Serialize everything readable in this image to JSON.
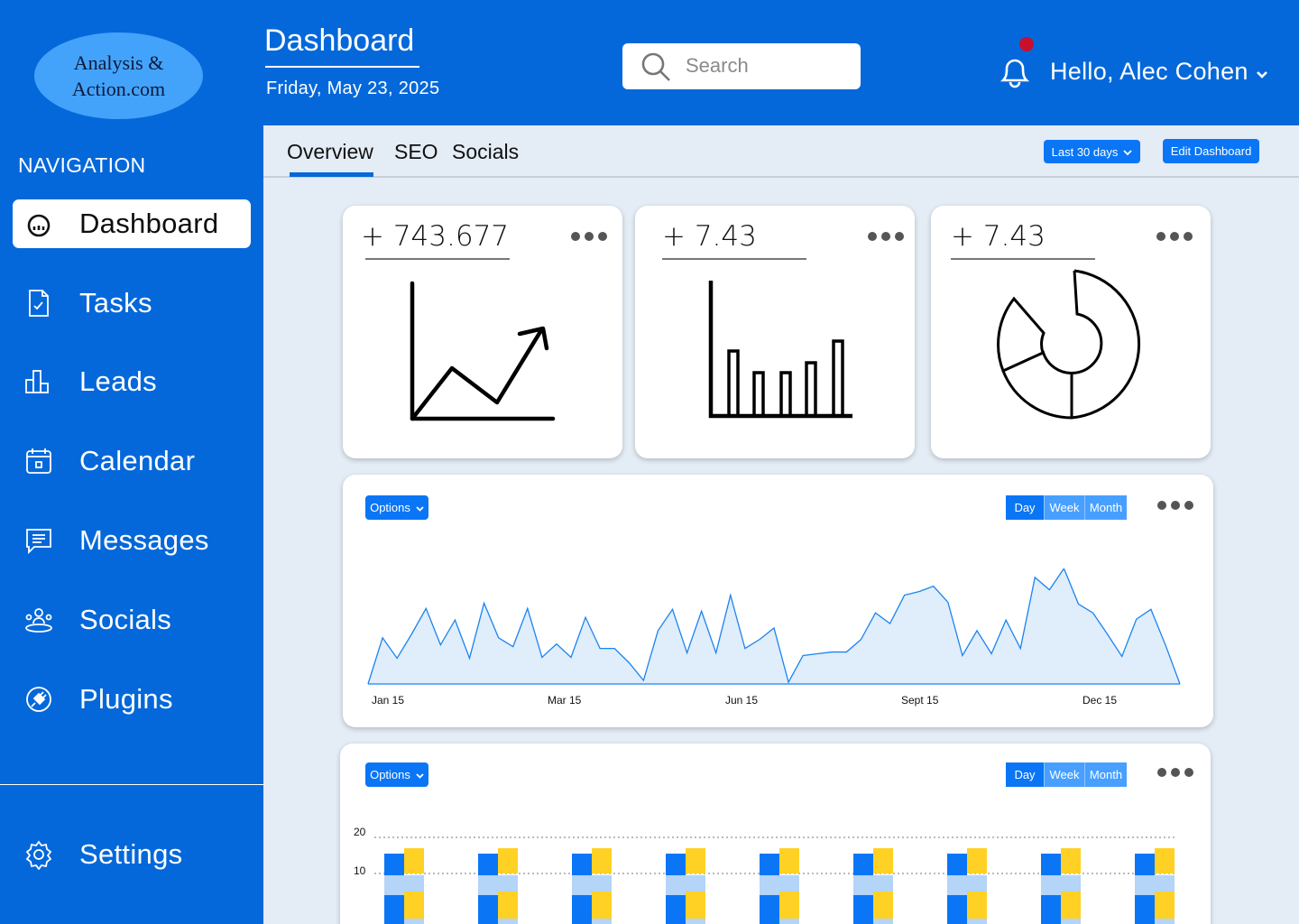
{
  "logo": {
    "line1": "Analysis &",
    "line2": "Action.com"
  },
  "sidebar": {
    "heading": "NAVIGATION",
    "items": [
      {
        "label": "Dashboard",
        "icon": "gauge-icon",
        "active": true
      },
      {
        "label": "Tasks",
        "icon": "task-checklist-icon"
      },
      {
        "label": "Leads",
        "icon": "bar-chart-icon"
      },
      {
        "label": "Calendar",
        "icon": "calendar-icon"
      },
      {
        "label": "Messages",
        "icon": "message-icon"
      },
      {
        "label": "Socials",
        "icon": "people-icon"
      },
      {
        "label": "Plugins",
        "icon": "plug-icon"
      }
    ],
    "settings": {
      "label": "Settings",
      "icon": "gear-icon"
    }
  },
  "header": {
    "title": "Dashboard",
    "date": "Friday, May 23, 2025",
    "search_placeholder": "Search",
    "greeting": "Hello, Alec Cohen",
    "colors": {
      "accent": "#0568da",
      "notification": "#c8102e"
    }
  },
  "tabs": [
    {
      "label": "Overview",
      "active": true
    },
    {
      "label": "SEO"
    },
    {
      "label": "Socials"
    }
  ],
  "range_selector": "Last 30 days",
  "edit_button": "Edit Dashboard",
  "stat_cards": [
    {
      "value": "+ 743.677",
      "icon": "trending-line-chart-icon"
    },
    {
      "value": "+ 7.43",
      "icon": "bar-chart-icon"
    },
    {
      "value": "+ 7.43",
      "icon": "donut-chart-icon"
    }
  ],
  "chart_controls": {
    "options_label": "Options",
    "day": "Day",
    "week": "Week",
    "month": "Month"
  },
  "chart_data": [
    {
      "type": "area",
      "x_ticks": [
        "Jan 15",
        "Mar 15",
        "Jun 15",
        "Sept 15",
        "Dec 15"
      ],
      "values": [
        0,
        52,
        29,
        56,
        85,
        44,
        72,
        29,
        91,
        52,
        42,
        85,
        30,
        45,
        30,
        75,
        40,
        40,
        24,
        4,
        60,
        84,
        35,
        82,
        35,
        100,
        40,
        50,
        63,
        2,
        32,
        34,
        36,
        36,
        50,
        80,
        68,
        100,
        104,
        110,
        92,
        32,
        60,
        34,
        72,
        40,
        120,
        106,
        130,
        90,
        80,
        56,
        31,
        73,
        84,
        44,
        0
      ],
      "colors": {
        "line": "#1a84f0",
        "fill": "#e0edfb"
      }
    },
    {
      "type": "bar",
      "y_ticks": [
        "20",
        "10"
      ],
      "group_count": 9,
      "colors": [
        "#0a76f5",
        "#ffd125",
        "#b4d4f8"
      ]
    }
  ]
}
